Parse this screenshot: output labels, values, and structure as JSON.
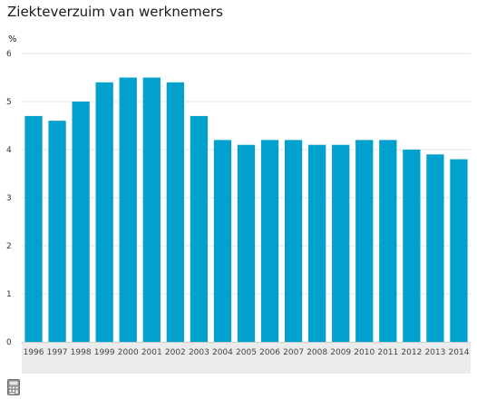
{
  "chart_data": {
    "type": "bar",
    "title": "Ziekteverzuim van werknemers",
    "ylabel": "%",
    "xlabel": "",
    "categories": [
      "1996",
      "1997",
      "1998",
      "1999",
      "2000",
      "2001",
      "2002",
      "2003",
      "2004",
      "2005",
      "2006",
      "2007",
      "2008",
      "2009",
      "2010",
      "2011",
      "2012",
      "2013",
      "2014"
    ],
    "values": [
      4.7,
      4.6,
      5.0,
      5.4,
      5.5,
      5.5,
      5.4,
      4.7,
      4.2,
      4.1,
      4.2,
      4.2,
      4.1,
      4.1,
      4.2,
      4.2,
      4.0,
      3.9,
      3.8
    ],
    "ylim": [
      0,
      6
    ],
    "yticks": [
      "0",
      "1",
      "2",
      "3",
      "4",
      "5",
      "6"
    ],
    "grid": true,
    "colors": {
      "bar": "#00a1cd",
      "axis_band": "#ebebeb",
      "grid": "#e6e6e6"
    }
  },
  "icons": {
    "calculator": "calculator-icon"
  }
}
